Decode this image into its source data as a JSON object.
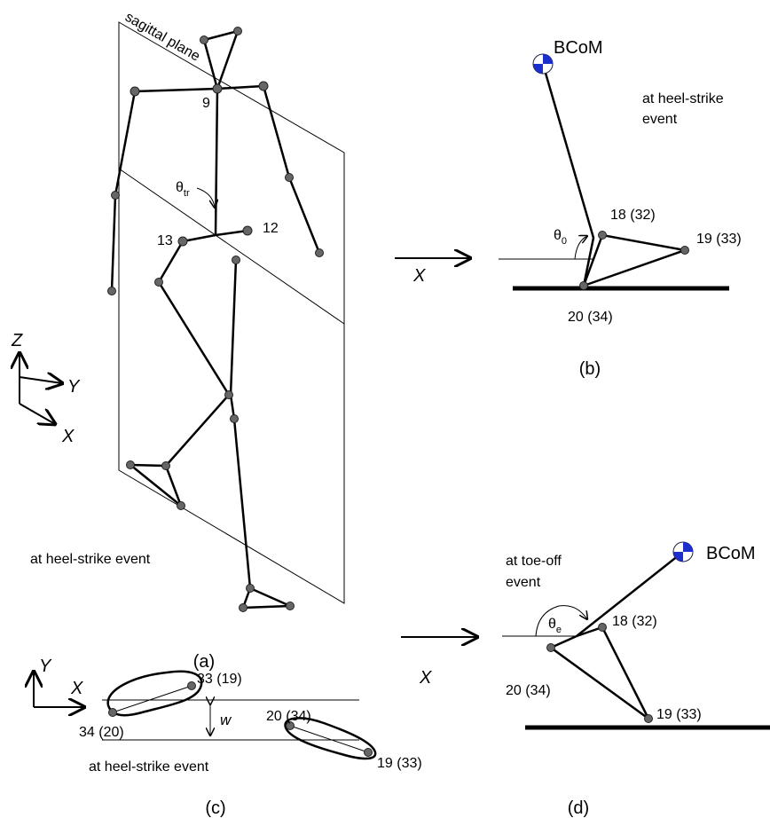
{
  "panel_a": {
    "plane_label": "sagittal plane",
    "joint_labels": [
      "9",
      "13",
      "12"
    ],
    "angle": {
      "symbol": "θ",
      "subscript": "tr"
    },
    "axes": {
      "z": "Z",
      "y": "Y",
      "x": "X"
    },
    "event": "at heel-strike event",
    "caption": "(a)"
  },
  "panel_b": {
    "com": "BCoM",
    "event": [
      "at heel-strike",
      "event"
    ],
    "angle": {
      "symbol": "θ",
      "subscript": "0"
    },
    "markers": [
      "18 (32)",
      "19 (33)",
      "20 (34)"
    ],
    "direction": "X",
    "caption": "(b)"
  },
  "panel_c": {
    "axes": {
      "y": "Y",
      "x": "X"
    },
    "markers": [
      "33 (19)",
      "34 (20)",
      "20 (34)",
      "19 (33)"
    ],
    "width": "w",
    "event": "at heel-strike event",
    "caption": "(c)"
  },
  "panel_d": {
    "com": "BCoM",
    "event": [
      "at toe-off",
      "event"
    ],
    "angle": {
      "symbol": "θ",
      "subscript": "e"
    },
    "markers": [
      "18 (32)",
      "20 (34)",
      "19 (33)"
    ],
    "direction": "X",
    "caption": "(d)"
  }
}
